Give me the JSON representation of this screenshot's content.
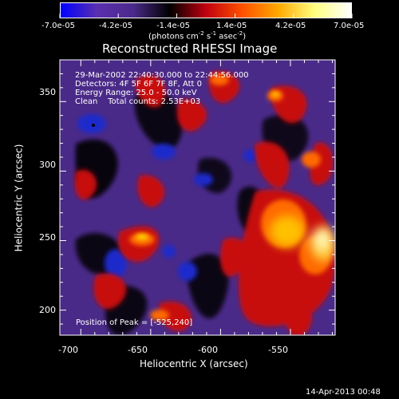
{
  "colorbar": {
    "tick_labels": [
      "-7.0e-05",
      "-4.2e-05",
      "-1.4e-05",
      "1.4e-05",
      "4.2e-05",
      "7.0e-05"
    ],
    "ticks": [
      -7e-05,
      -4.2e-05,
      -1.4e-05,
      1.4e-05,
      4.2e-05,
      7e-05
    ],
    "range": [
      -7e-05,
      7e-05
    ],
    "units_prefix": "(photons cm",
    "units_exp1": "-2",
    "units_mid": " s",
    "units_exp2": "-1",
    "units_mid2": " asec",
    "units_exp3": "-2",
    "units_suffix": ")",
    "colormap": [
      "#0000ff",
      "#5a2fb0",
      "#4b2a8a",
      "#000000",
      "#c0000f",
      "#ff5000",
      "#ffaa00",
      "#ffff80",
      "#ffffff"
    ]
  },
  "plot": {
    "title": "Reconstructed RHESSI Image",
    "xlabel": "Heliocentric X (arcsec)",
    "ylabel": "Heliocentric Y (arcsec)",
    "xticks": [
      "-700",
      "-650",
      "-600",
      "-550"
    ],
    "xtick_values": [
      -700,
      -650,
      -600,
      -550
    ],
    "yticks": [
      "350",
      "300",
      "250",
      "200"
    ],
    "ytick_values": [
      350,
      300,
      250,
      200
    ],
    "xlim": [
      -715,
      -518
    ],
    "ylim": [
      182,
      380
    ],
    "annotations": [
      "29-Mar-2002 22:40:30.000 to 22:44:56.000",
      "Detectors: 4F 5F 6F 7F 8F, Att 0",
      "Energy Range: 25.0 - 50.0 keV",
      "Clean    Total counts: 2.53E+03"
    ],
    "peak_label": "Position of Peak = [-525,240]"
  },
  "footer": {
    "timestamp": "14-Apr-2013 00:48"
  }
}
